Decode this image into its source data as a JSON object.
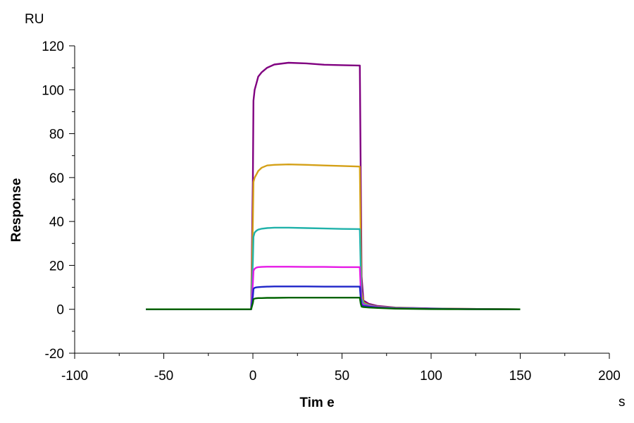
{
  "chart_data": {
    "type": "line",
    "title": "",
    "xlabel": "Tim e",
    "ylabel": "Response",
    "x_unit": "s",
    "y_unit": "RU",
    "xlim": [
      -100,
      200
    ],
    "ylim": [
      -20,
      120
    ],
    "x_ticks": [
      -100,
      -50,
      0,
      50,
      100,
      150,
      200
    ],
    "y_ticks": [
      -20,
      0,
      20,
      40,
      60,
      80,
      100,
      120
    ],
    "grid": false,
    "legend": "none",
    "series": [
      {
        "color": "#800080",
        "x": [
          -60,
          -1,
          0,
          0.3,
          1,
          2,
          3,
          5,
          8,
          12,
          20,
          30,
          40,
          50,
          60,
          60.5,
          61,
          62,
          65,
          70,
          80,
          100,
          120,
          150
        ],
        "y": [
          0,
          0,
          60,
          95,
          100,
          103,
          106,
          108,
          110,
          111.5,
          112.3,
          112,
          111.4,
          111.2,
          111,
          60,
          15,
          4,
          2.5,
          1.5,
          0.8,
          0.4,
          0.2,
          0
        ]
      },
      {
        "color": "#D4A017",
        "x": [
          -60,
          -1,
          0,
          0.3,
          1,
          2,
          3,
          5,
          8,
          12,
          20,
          30,
          40,
          50,
          60,
          60.5,
          61,
          62,
          65,
          70,
          80,
          100,
          120,
          150
        ],
        "y": [
          0,
          0,
          40,
          58,
          60,
          61.5,
          63,
          64.5,
          65.5,
          65.8,
          66,
          65.8,
          65.5,
          65.3,
          65,
          30,
          8,
          3,
          2,
          1.2,
          0.7,
          0.3,
          0.2,
          0
        ]
      },
      {
        "color": "#20B2AA",
        "x": [
          -60,
          -1,
          0,
          0.3,
          1,
          2,
          3,
          5,
          8,
          12,
          20,
          30,
          40,
          50,
          60,
          60.5,
          61,
          62,
          65,
          70,
          80,
          100,
          120,
          150
        ],
        "y": [
          0,
          0,
          22,
          33,
          35,
          35.8,
          36.3,
          36.7,
          37,
          37.2,
          37.2,
          37,
          36.8,
          36.6,
          36.5,
          18,
          5,
          2.5,
          1.8,
          1.1,
          0.6,
          0.3,
          0.1,
          0
        ]
      },
      {
        "color": "#E619E6",
        "x": [
          -60,
          -1,
          0,
          0.3,
          1,
          2,
          3,
          5,
          8,
          12,
          20,
          30,
          40,
          50,
          60,
          60.5,
          61,
          62,
          65,
          70,
          80,
          100,
          120,
          150
        ],
        "y": [
          0,
          0,
          12,
          17.5,
          18.5,
          19,
          19.2,
          19.3,
          19.4,
          19.4,
          19.4,
          19.3,
          19.3,
          19.2,
          19.2,
          9,
          3,
          2,
          1.5,
          1,
          0.5,
          0.2,
          0.1,
          0
        ]
      },
      {
        "color": "#1E24C8",
        "x": [
          -60,
          -1,
          0,
          0.3,
          1,
          2,
          3,
          5,
          8,
          12,
          20,
          30,
          40,
          50,
          60,
          60.5,
          61,
          62,
          65,
          70,
          80,
          100,
          120,
          150
        ],
        "y": [
          0,
          0,
          6,
          9.3,
          9.8,
          10,
          10.1,
          10.2,
          10.3,
          10.4,
          10.4,
          10.4,
          10.3,
          10.3,
          10.3,
          5,
          2,
          1.5,
          1.2,
          0.8,
          0.4,
          0.2,
          0.1,
          0
        ]
      },
      {
        "color": "#006400",
        "x": [
          -60,
          -1,
          0,
          0.3,
          1,
          2,
          3,
          5,
          8,
          12,
          20,
          30,
          40,
          50,
          60,
          60.5,
          61,
          62,
          65,
          70,
          80,
          100,
          120,
          150
        ],
        "y": [
          0,
          0,
          3,
          4.6,
          4.9,
          5,
          5.1,
          5.1,
          5.2,
          5.2,
          5.3,
          5.3,
          5.3,
          5.3,
          5.3,
          2.5,
          1.2,
          1,
          0.8,
          0.6,
          0.3,
          0.1,
          0.05,
          0
        ]
      }
    ]
  }
}
